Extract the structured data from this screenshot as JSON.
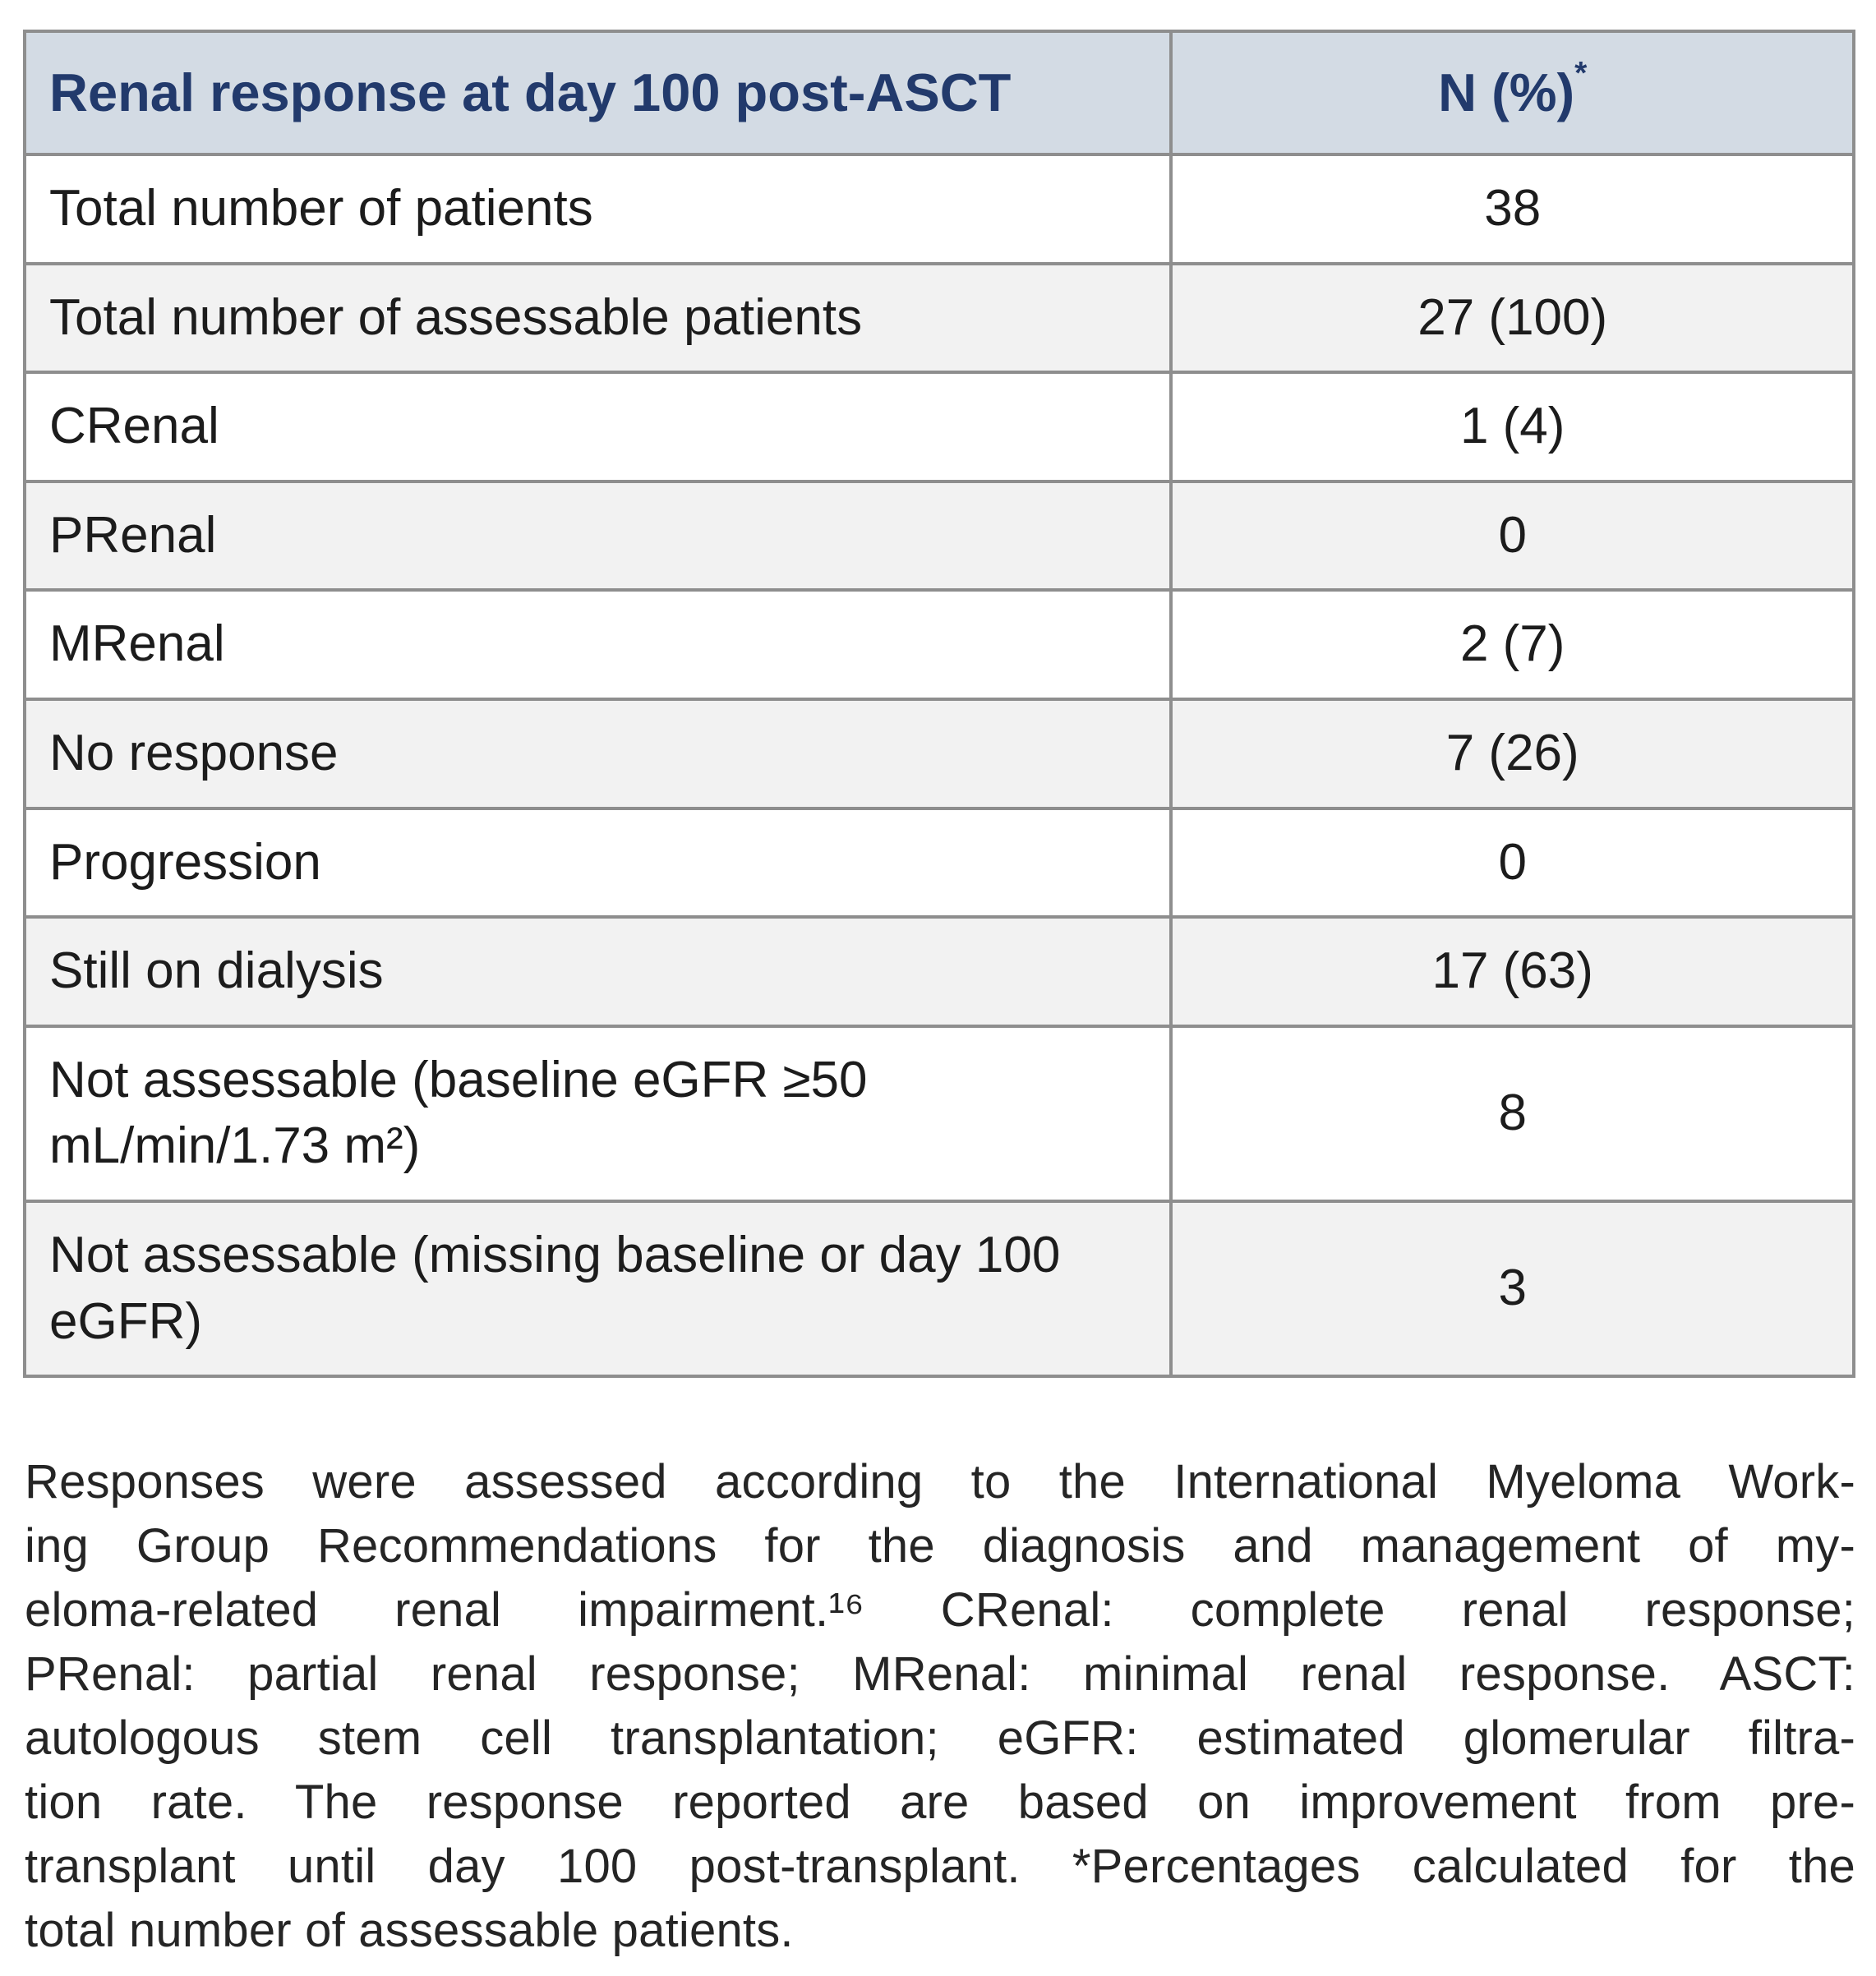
{
  "colors": {
    "header_bg": "#d3dbe4",
    "header_text": "#223a6c",
    "border": "#8e8e8e",
    "alt_row_bg": "#f2f2f2",
    "body_text": "#1c1c1c",
    "footnote_text": "#252525"
  },
  "table": {
    "header": {
      "label_column": "Renal response at day 100 post-ASCT",
      "value_column": "N (%)",
      "value_column_superscript": "*"
    },
    "rows": [
      {
        "label": "Total number of patients",
        "value": "38"
      },
      {
        "label": "Total number of assessable patients",
        "value": "27 (100)"
      },
      {
        "label": "CRenal",
        "value": "1 (4)"
      },
      {
        "label": "PRenal",
        "value": "0"
      },
      {
        "label": "MRenal",
        "value": "2 (7)"
      },
      {
        "label": "No response",
        "value": "7 (26)"
      },
      {
        "label": "Progression",
        "value": "0"
      },
      {
        "label": "Still on dialysis",
        "value": "17 (63)"
      },
      {
        "label": "Not assessable (baseline eGFR ≥50 mL/min/1.73 m²)",
        "value": "8"
      },
      {
        "label": "Not assessable (missing baseline or day 100 eGFR)",
        "value": "3"
      }
    ]
  },
  "footnote": {
    "lines": [
      "Responses were assessed according to the International Myeloma Work-",
      "ing Group Recommendations for the diagnosis and management of my-",
      "eloma-related renal impairment.¹⁶ CRenal: complete renal response;",
      "PRenal: partial renal response; MRenal: minimal renal response. ASCT:",
      "autologous stem cell transplantation; eGFR: estimated glomerular filtra-",
      "tion rate. The response reported are based on improvement from pre-",
      "transplant until day 100 post-transplant. *Percentages calculated for the",
      "total number of assessable patients."
    ]
  }
}
